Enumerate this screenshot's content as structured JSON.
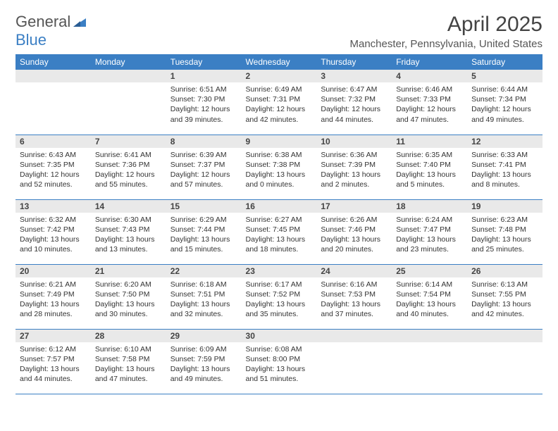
{
  "logo": {
    "text_general": "General",
    "text_blue": "Blue",
    "icon_color": "#3b7fc4"
  },
  "title": "April 2025",
  "location": "Manchester, Pennsylvania, United States",
  "title_fontsize": 30,
  "location_fontsize": 15,
  "header_bg": "#3b7fc4",
  "header_text_color": "#ffffff",
  "daynum_bg": "#e9e9e9",
  "border_color": "#3b7fc4",
  "body_fontsize": 10.5,
  "daynames": [
    "Sunday",
    "Monday",
    "Tuesday",
    "Wednesday",
    "Thursday",
    "Friday",
    "Saturday"
  ],
  "weeks": [
    [
      {
        "empty": true
      },
      {
        "empty": true
      },
      {
        "day": "1",
        "sunrise": "Sunrise: 6:51 AM",
        "sunset": "Sunset: 7:30 PM",
        "daylight1": "Daylight: 12 hours",
        "daylight2": "and 39 minutes."
      },
      {
        "day": "2",
        "sunrise": "Sunrise: 6:49 AM",
        "sunset": "Sunset: 7:31 PM",
        "daylight1": "Daylight: 12 hours",
        "daylight2": "and 42 minutes."
      },
      {
        "day": "3",
        "sunrise": "Sunrise: 6:47 AM",
        "sunset": "Sunset: 7:32 PM",
        "daylight1": "Daylight: 12 hours",
        "daylight2": "and 44 minutes."
      },
      {
        "day": "4",
        "sunrise": "Sunrise: 6:46 AM",
        "sunset": "Sunset: 7:33 PM",
        "daylight1": "Daylight: 12 hours",
        "daylight2": "and 47 minutes."
      },
      {
        "day": "5",
        "sunrise": "Sunrise: 6:44 AM",
        "sunset": "Sunset: 7:34 PM",
        "daylight1": "Daylight: 12 hours",
        "daylight2": "and 49 minutes."
      }
    ],
    [
      {
        "day": "6",
        "sunrise": "Sunrise: 6:43 AM",
        "sunset": "Sunset: 7:35 PM",
        "daylight1": "Daylight: 12 hours",
        "daylight2": "and 52 minutes."
      },
      {
        "day": "7",
        "sunrise": "Sunrise: 6:41 AM",
        "sunset": "Sunset: 7:36 PM",
        "daylight1": "Daylight: 12 hours",
        "daylight2": "and 55 minutes."
      },
      {
        "day": "8",
        "sunrise": "Sunrise: 6:39 AM",
        "sunset": "Sunset: 7:37 PM",
        "daylight1": "Daylight: 12 hours",
        "daylight2": "and 57 minutes."
      },
      {
        "day": "9",
        "sunrise": "Sunrise: 6:38 AM",
        "sunset": "Sunset: 7:38 PM",
        "daylight1": "Daylight: 13 hours",
        "daylight2": "and 0 minutes."
      },
      {
        "day": "10",
        "sunrise": "Sunrise: 6:36 AM",
        "sunset": "Sunset: 7:39 PM",
        "daylight1": "Daylight: 13 hours",
        "daylight2": "and 2 minutes."
      },
      {
        "day": "11",
        "sunrise": "Sunrise: 6:35 AM",
        "sunset": "Sunset: 7:40 PM",
        "daylight1": "Daylight: 13 hours",
        "daylight2": "and 5 minutes."
      },
      {
        "day": "12",
        "sunrise": "Sunrise: 6:33 AM",
        "sunset": "Sunset: 7:41 PM",
        "daylight1": "Daylight: 13 hours",
        "daylight2": "and 8 minutes."
      }
    ],
    [
      {
        "day": "13",
        "sunrise": "Sunrise: 6:32 AM",
        "sunset": "Sunset: 7:42 PM",
        "daylight1": "Daylight: 13 hours",
        "daylight2": "and 10 minutes."
      },
      {
        "day": "14",
        "sunrise": "Sunrise: 6:30 AM",
        "sunset": "Sunset: 7:43 PM",
        "daylight1": "Daylight: 13 hours",
        "daylight2": "and 13 minutes."
      },
      {
        "day": "15",
        "sunrise": "Sunrise: 6:29 AM",
        "sunset": "Sunset: 7:44 PM",
        "daylight1": "Daylight: 13 hours",
        "daylight2": "and 15 minutes."
      },
      {
        "day": "16",
        "sunrise": "Sunrise: 6:27 AM",
        "sunset": "Sunset: 7:45 PM",
        "daylight1": "Daylight: 13 hours",
        "daylight2": "and 18 minutes."
      },
      {
        "day": "17",
        "sunrise": "Sunrise: 6:26 AM",
        "sunset": "Sunset: 7:46 PM",
        "daylight1": "Daylight: 13 hours",
        "daylight2": "and 20 minutes."
      },
      {
        "day": "18",
        "sunrise": "Sunrise: 6:24 AM",
        "sunset": "Sunset: 7:47 PM",
        "daylight1": "Daylight: 13 hours",
        "daylight2": "and 23 minutes."
      },
      {
        "day": "19",
        "sunrise": "Sunrise: 6:23 AM",
        "sunset": "Sunset: 7:48 PM",
        "daylight1": "Daylight: 13 hours",
        "daylight2": "and 25 minutes."
      }
    ],
    [
      {
        "day": "20",
        "sunrise": "Sunrise: 6:21 AM",
        "sunset": "Sunset: 7:49 PM",
        "daylight1": "Daylight: 13 hours",
        "daylight2": "and 28 minutes."
      },
      {
        "day": "21",
        "sunrise": "Sunrise: 6:20 AM",
        "sunset": "Sunset: 7:50 PM",
        "daylight1": "Daylight: 13 hours",
        "daylight2": "and 30 minutes."
      },
      {
        "day": "22",
        "sunrise": "Sunrise: 6:18 AM",
        "sunset": "Sunset: 7:51 PM",
        "daylight1": "Daylight: 13 hours",
        "daylight2": "and 32 minutes."
      },
      {
        "day": "23",
        "sunrise": "Sunrise: 6:17 AM",
        "sunset": "Sunset: 7:52 PM",
        "daylight1": "Daylight: 13 hours",
        "daylight2": "and 35 minutes."
      },
      {
        "day": "24",
        "sunrise": "Sunrise: 6:16 AM",
        "sunset": "Sunset: 7:53 PM",
        "daylight1": "Daylight: 13 hours",
        "daylight2": "and 37 minutes."
      },
      {
        "day": "25",
        "sunrise": "Sunrise: 6:14 AM",
        "sunset": "Sunset: 7:54 PM",
        "daylight1": "Daylight: 13 hours",
        "daylight2": "and 40 minutes."
      },
      {
        "day": "26",
        "sunrise": "Sunrise: 6:13 AM",
        "sunset": "Sunset: 7:55 PM",
        "daylight1": "Daylight: 13 hours",
        "daylight2": "and 42 minutes."
      }
    ],
    [
      {
        "day": "27",
        "sunrise": "Sunrise: 6:12 AM",
        "sunset": "Sunset: 7:57 PM",
        "daylight1": "Daylight: 13 hours",
        "daylight2": "and 44 minutes."
      },
      {
        "day": "28",
        "sunrise": "Sunrise: 6:10 AM",
        "sunset": "Sunset: 7:58 PM",
        "daylight1": "Daylight: 13 hours",
        "daylight2": "and 47 minutes."
      },
      {
        "day": "29",
        "sunrise": "Sunrise: 6:09 AM",
        "sunset": "Sunset: 7:59 PM",
        "daylight1": "Daylight: 13 hours",
        "daylight2": "and 49 minutes."
      },
      {
        "day": "30",
        "sunrise": "Sunrise: 6:08 AM",
        "sunset": "Sunset: 8:00 PM",
        "daylight1": "Daylight: 13 hours",
        "daylight2": "and 51 minutes."
      },
      {
        "empty": true
      },
      {
        "empty": true
      },
      {
        "empty": true
      }
    ]
  ]
}
